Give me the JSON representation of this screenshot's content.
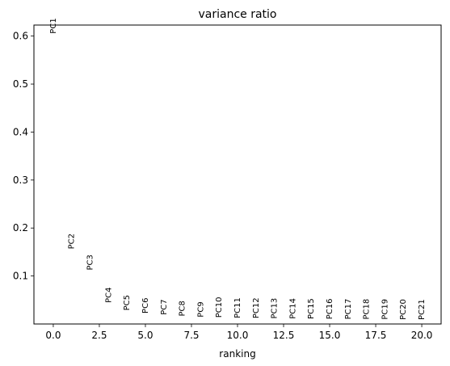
{
  "chart_data": {
    "type": "scatter",
    "title": "variance ratio",
    "xlabel": "ranking",
    "ylabel": "",
    "xlim": [
      -1.05,
      21.05
    ],
    "ylim": [
      0.0,
      0.623
    ],
    "xticks": [
      0.0,
      2.5,
      5.0,
      7.5,
      10.0,
      12.5,
      15.0,
      17.5,
      20.0
    ],
    "xtick_labels": [
      "0.0",
      "2.5",
      "5.0",
      "7.5",
      "10.0",
      "12.5",
      "15.0",
      "17.5",
      "20.0"
    ],
    "yticks": [
      0.1,
      0.2,
      0.3,
      0.4,
      0.5,
      0.6
    ],
    "ytick_labels": [
      "0.1",
      "0.2",
      "0.3",
      "0.4",
      "0.5",
      "0.6"
    ],
    "grid": false,
    "points": [
      {
        "x": 0,
        "y": 0.605,
        "label": "PC1"
      },
      {
        "x": 1,
        "y": 0.156,
        "label": "PC2"
      },
      {
        "x": 2,
        "y": 0.112,
        "label": "PC3"
      },
      {
        "x": 3,
        "y": 0.044,
        "label": "PC4"
      },
      {
        "x": 4,
        "y": 0.028,
        "label": "PC5"
      },
      {
        "x": 5,
        "y": 0.022,
        "label": "PC6"
      },
      {
        "x": 6,
        "y": 0.019,
        "label": "PC7"
      },
      {
        "x": 7,
        "y": 0.016,
        "label": "PC8"
      },
      {
        "x": 8,
        "y": 0.014,
        "label": "PC9"
      },
      {
        "x": 9,
        "y": 0.013,
        "label": "PC10"
      },
      {
        "x": 10,
        "y": 0.012,
        "label": "PC11"
      },
      {
        "x": 11,
        "y": 0.0115,
        "label": "PC12"
      },
      {
        "x": 12,
        "y": 0.011,
        "label": "PC13"
      },
      {
        "x": 13,
        "y": 0.0105,
        "label": "PC14"
      },
      {
        "x": 14,
        "y": 0.0102,
        "label": "PC15"
      },
      {
        "x": 15,
        "y": 0.0098,
        "label": "PC16"
      },
      {
        "x": 16,
        "y": 0.0095,
        "label": "PC17"
      },
      {
        "x": 17,
        "y": 0.0092,
        "label": "PC18"
      },
      {
        "x": 18,
        "y": 0.009,
        "label": "PC19"
      },
      {
        "x": 19,
        "y": 0.0087,
        "label": "PC20"
      },
      {
        "x": 20,
        "y": 0.0085,
        "label": "PC21"
      }
    ]
  }
}
